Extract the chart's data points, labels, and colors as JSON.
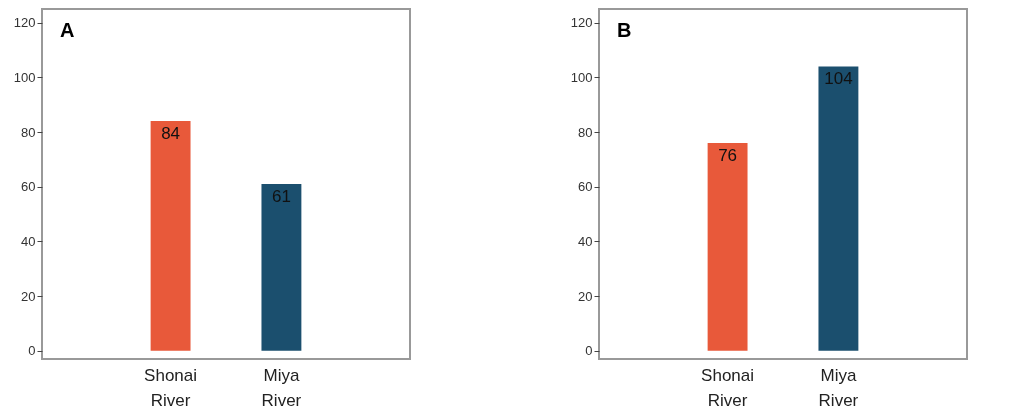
{
  "chart_data": [
    {
      "type": "bar",
      "title": "A",
      "categories": [
        "Shonai River",
        "Miya River"
      ],
      "values": [
        84,
        61
      ],
      "colors": [
        "#e8593a",
        "#1b4f6e"
      ],
      "ylim": [
        -3,
        125
      ],
      "yticks": [
        0,
        20,
        40,
        60,
        80,
        100,
        120
      ],
      "data_labels": true
    },
    {
      "type": "bar",
      "title": "B",
      "categories": [
        "Shonai River",
        "Miya River"
      ],
      "values": [
        76,
        104
      ],
      "colors": [
        "#e8593a",
        "#1b4f6e"
      ],
      "ylim": [
        -3,
        125
      ],
      "yticks": [
        0,
        20,
        40,
        60,
        80,
        100,
        120
      ],
      "data_labels": true
    }
  ]
}
